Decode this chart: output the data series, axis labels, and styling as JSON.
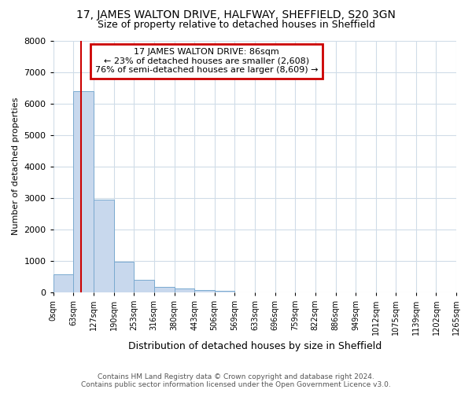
{
  "title": "17, JAMES WALTON DRIVE, HALFWAY, SHEFFIELD, S20 3GN",
  "subtitle": "Size of property relative to detached houses in Sheffield",
  "xlabel": "Distribution of detached houses by size in Sheffield",
  "ylabel": "Number of detached properties",
  "bin_edges": [
    0,
    63,
    127,
    190,
    253,
    316,
    380,
    443,
    506,
    569,
    633,
    696,
    759,
    822,
    886,
    949,
    1012,
    1075,
    1139,
    1202,
    1265
  ],
  "bar_heights": [
    560,
    6380,
    2950,
    960,
    380,
    170,
    110,
    60,
    50,
    0,
    0,
    0,
    0,
    0,
    0,
    0,
    0,
    0,
    0,
    0
  ],
  "bar_color": "#c8d8ed",
  "bar_edge_color": "#7aaad0",
  "property_size": 86,
  "vline_color": "#cc0000",
  "ylim": [
    0,
    8000
  ],
  "yticks": [
    0,
    1000,
    2000,
    3000,
    4000,
    5000,
    6000,
    7000,
    8000
  ],
  "annotation_line1": "17 JAMES WALTON DRIVE: 86sqm",
  "annotation_line2": "← 23% of detached houses are smaller (2,608)",
  "annotation_line3": "76% of semi-detached houses are larger (8,609) →",
  "annotation_box_edgecolor": "#cc0000",
  "footer_line1": "Contains HM Land Registry data © Crown copyright and database right 2024.",
  "footer_line2": "Contains public sector information licensed under the Open Government Licence v3.0.",
  "grid_color": "#d0dce8",
  "bg_color": "#ffffff",
  "title_fontsize": 10,
  "subtitle_fontsize": 9,
  "ylabel_fontsize": 8,
  "xlabel_fontsize": 9,
  "tick_fontsize": 7,
  "ytick_fontsize": 8,
  "footer_fontsize": 6.5,
  "annot_fontsize": 8
}
